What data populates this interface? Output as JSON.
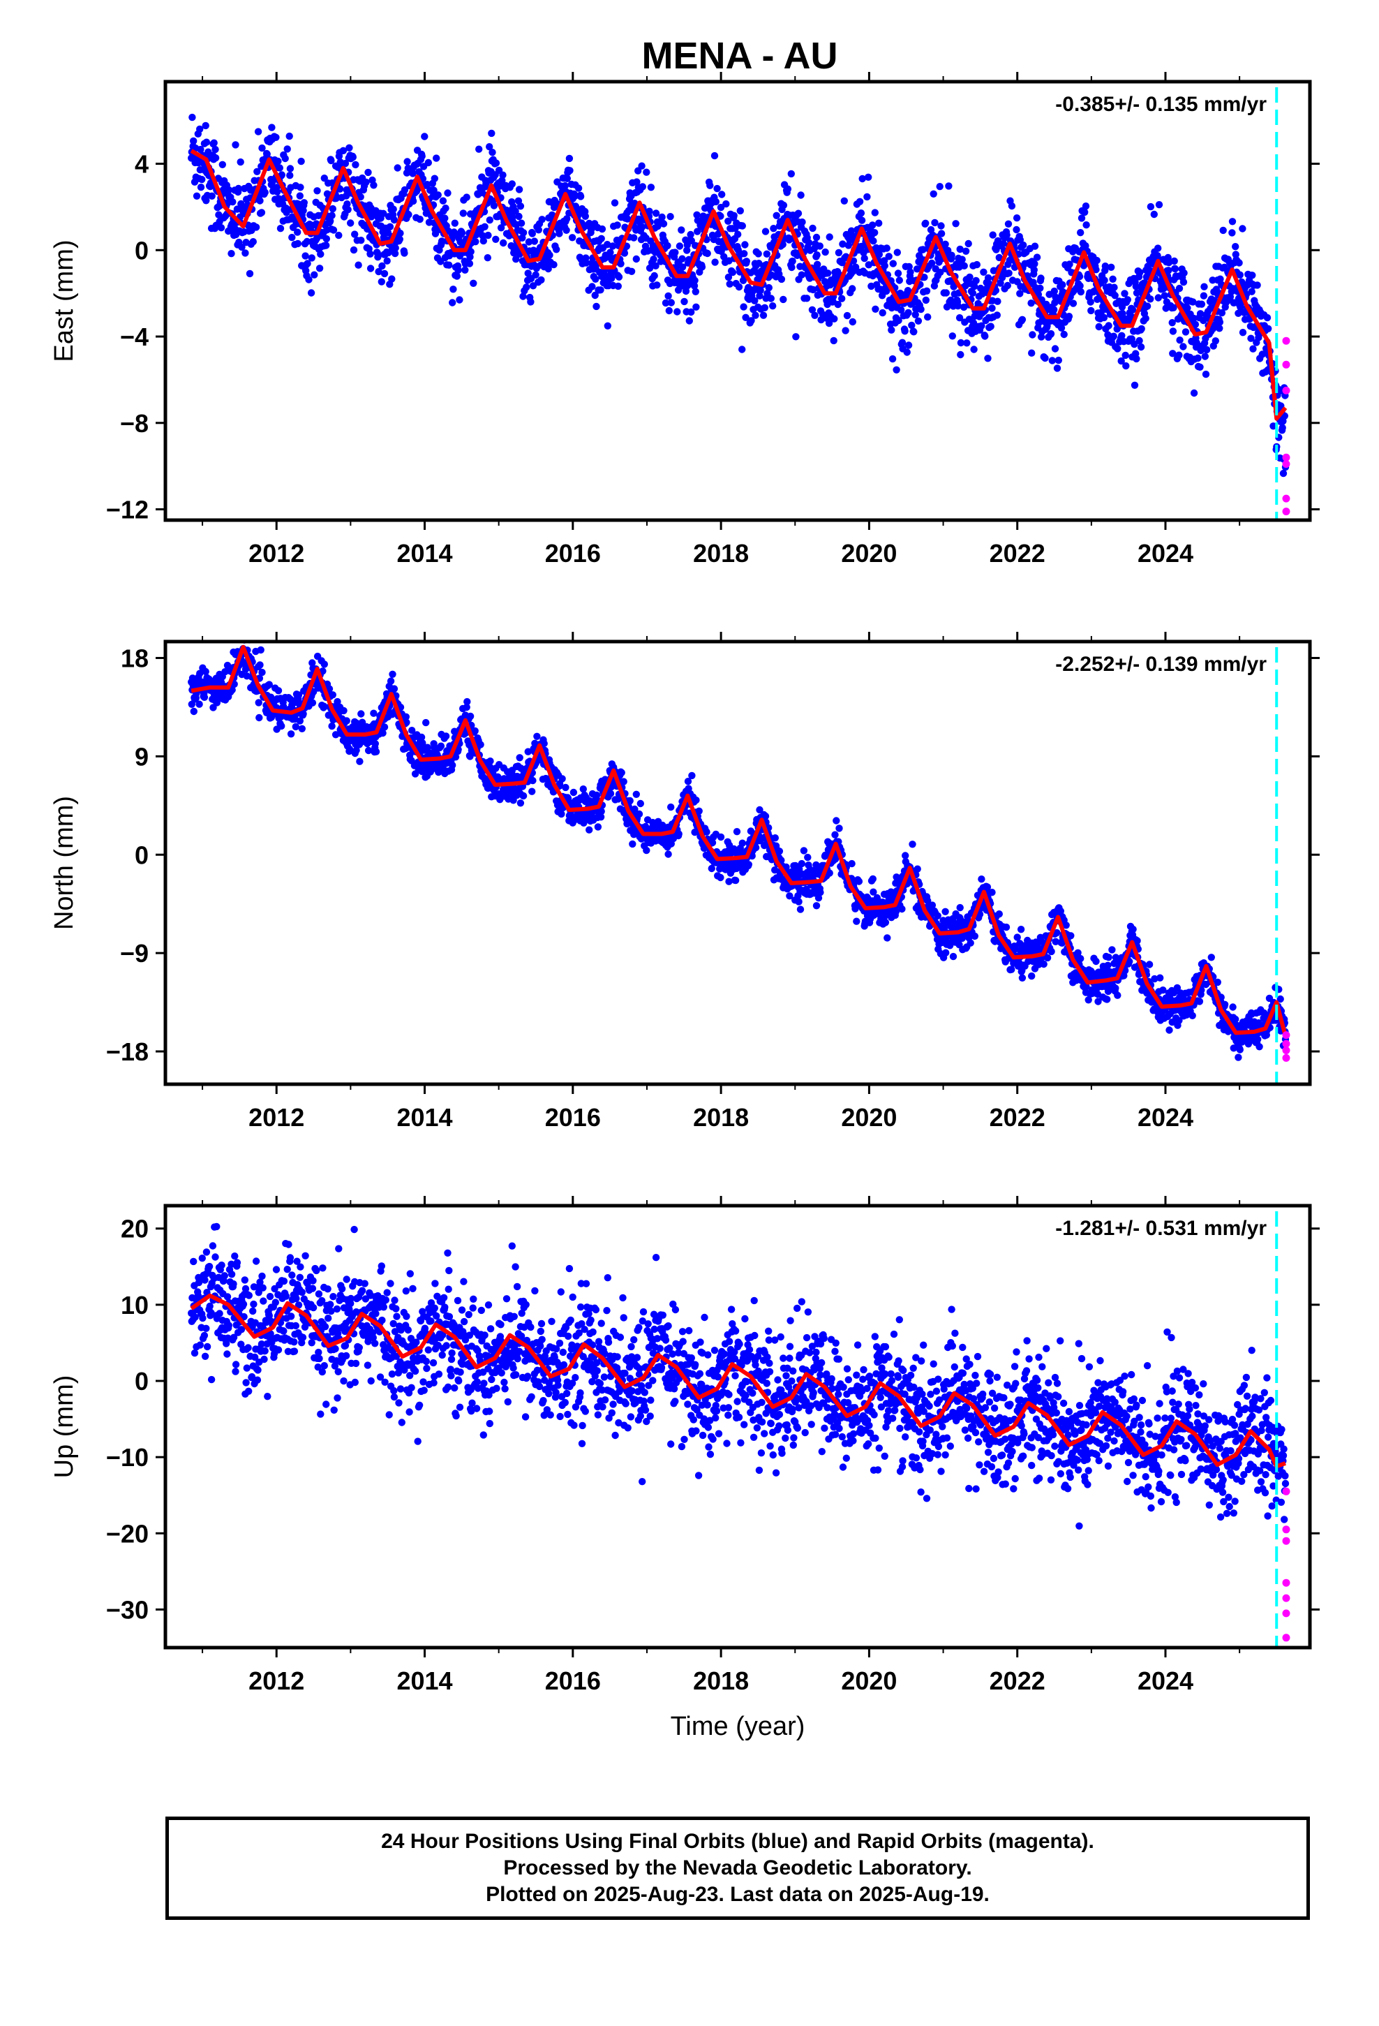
{
  "title": "MENA - AU",
  "colors": {
    "final_orbits": "#0000ff",
    "rapid_orbits": "#ff00ff",
    "model": "#ff0000",
    "last_data_line": "#00ffff"
  },
  "chart_data": [
    {
      "type": "scatter",
      "component": "East",
      "ylabel": "East (mm)",
      "xlabel": "",
      "rate_label": "-0.385+/- 0.135 mm/yr",
      "xlim": [
        2010.5,
        2025.95
      ],
      "ylim": [
        -12.5,
        7.8
      ],
      "xticks": [
        2012,
        2014,
        2016,
        2018,
        2020,
        2022,
        2024
      ],
      "yticks": [
        4,
        0,
        -4,
        -8,
        -12
      ],
      "ytick_labels": [
        "4",
        "0",
        "−4",
        "−8",
        "−12"
      ],
      "vline_x": 2025.5,
      "series": [
        {
          "type": "scatter",
          "color": "#0000ff",
          "x_range": [
            2010.85,
            2025.62
          ],
          "trend": {
            "t0": 2010.85,
            "y0": 4.5,
            "rate": -0.385
          },
          "scatter_sd": 1.3
        },
        {
          "type": "scatter",
          "color": "#ff00ff",
          "x_range": [
            2025.62,
            2025.63
          ],
          "points": [
            [
              2025.63,
              -4.2
            ],
            [
              2025.63,
              -5.3
            ],
            [
              2025.63,
              -6.5
            ],
            [
              2025.63,
              -9.6
            ],
            [
              2025.63,
              -9.9
            ],
            [
              2025.63,
              -11.5
            ],
            [
              2025.63,
              -12.1
            ]
          ]
        },
        {
          "type": "line",
          "color": "#ff0000",
          "curve": [
            [
              2010.85,
              4.6
            ],
            [
              2011.05,
              4.2
            ],
            [
              2011.3,
              2.0
            ],
            [
              2011.55,
              1.1
            ],
            [
              2011.9,
              4.2
            ],
            [
              2012.1,
              2.8
            ],
            [
              2012.4,
              0.8
            ],
            [
              2012.55,
              0.8
            ],
            [
              2012.9,
              3.8
            ],
            [
              2013.1,
              2.2
            ],
            [
              2013.4,
              0.3
            ],
            [
              2013.55,
              0.4
            ],
            [
              2013.9,
              3.4
            ],
            [
              2014.1,
              1.8
            ],
            [
              2014.4,
              0.0
            ],
            [
              2014.55,
              0.0
            ],
            [
              2014.9,
              3.0
            ],
            [
              2015.1,
              1.4
            ],
            [
              2015.4,
              -0.5
            ],
            [
              2015.55,
              -0.4
            ],
            [
              2015.9,
              2.6
            ],
            [
              2016.1,
              1.0
            ],
            [
              2016.4,
              -0.8
            ],
            [
              2016.55,
              -0.8
            ],
            [
              2016.9,
              2.2
            ],
            [
              2017.1,
              0.6
            ],
            [
              2017.4,
              -1.2
            ],
            [
              2017.55,
              -1.2
            ],
            [
              2017.9,
              1.8
            ],
            [
              2018.1,
              0.2
            ],
            [
              2018.4,
              -1.5
            ],
            [
              2018.55,
              -1.6
            ],
            [
              2018.9,
              1.4
            ],
            [
              2019.1,
              -0.2
            ],
            [
              2019.4,
              -2.0
            ],
            [
              2019.55,
              -2.0
            ],
            [
              2019.9,
              1.0
            ],
            [
              2020.1,
              -0.6
            ],
            [
              2020.4,
              -2.4
            ],
            [
              2020.55,
              -2.3
            ],
            [
              2020.9,
              0.6
            ],
            [
              2021.1,
              -1.0
            ],
            [
              2021.4,
              -2.7
            ],
            [
              2021.55,
              -2.7
            ],
            [
              2021.9,
              0.3
            ],
            [
              2022.1,
              -1.4
            ],
            [
              2022.4,
              -3.1
            ],
            [
              2022.55,
              -3.1
            ],
            [
              2022.9,
              -0.1
            ],
            [
              2023.1,
              -1.8
            ],
            [
              2023.4,
              -3.5
            ],
            [
              2023.55,
              -3.5
            ],
            [
              2023.9,
              -0.5
            ],
            [
              2024.1,
              -2.1
            ],
            [
              2024.4,
              -3.9
            ],
            [
              2024.55,
              -3.8
            ],
            [
              2024.9,
              -0.9
            ],
            [
              2025.1,
              -2.6
            ],
            [
              2025.4,
              -4.3
            ],
            [
              2025.5,
              -7.8
            ],
            [
              2025.62,
              -7.3
            ]
          ]
        }
      ]
    },
    {
      "type": "scatter",
      "component": "North",
      "ylabel": "North (mm)",
      "xlabel": "",
      "rate_label": "-2.252+/- 0.139 mm/yr",
      "xlim": [
        2010.5,
        2025.95
      ],
      "ylim": [
        -21,
        19.5
      ],
      "xticks": [
        2012,
        2014,
        2016,
        2018,
        2020,
        2022,
        2024
      ],
      "yticks": [
        18,
        9,
        0,
        -9,
        -18
      ],
      "ytick_labels": [
        "18",
        "9",
        "0",
        "−9",
        "−18"
      ],
      "vline_x": 2025.5,
      "series": [
        {
          "type": "scatter",
          "color": "#0000ff",
          "x_range": [
            2010.85,
            2025.62
          ],
          "trend": {
            "t0": 2010.85,
            "y0": 15.0,
            "rate": -2.252
          },
          "scatter_sd": 1.1
        },
        {
          "type": "scatter",
          "color": "#ff00ff",
          "x_range": [
            2025.62,
            2025.63
          ],
          "points": [
            [
              2025.63,
              -16.5
            ],
            [
              2025.63,
              -17.3
            ],
            [
              2025.63,
              -17.9
            ],
            [
              2025.63,
              -18.6
            ]
          ]
        },
        {
          "type": "line",
          "color": "#ff0000",
          "curve": [
            [
              2010.85,
              15.0
            ],
            [
              2011.1,
              15.3
            ],
            [
              2011.35,
              15.3
            ],
            [
              2011.55,
              19.0
            ],
            [
              2011.75,
              15.5
            ],
            [
              2011.95,
              13.2
            ],
            [
              2012.2,
              13.0
            ],
            [
              2012.35,
              13.4
            ],
            [
              2012.55,
              17.0
            ],
            [
              2012.75,
              13.3
            ],
            [
              2012.95,
              11.0
            ],
            [
              2013.2,
              11.0
            ],
            [
              2013.35,
              11.2
            ],
            [
              2013.55,
              14.7
            ],
            [
              2013.75,
              11.0
            ],
            [
              2013.95,
              8.7
            ],
            [
              2014.2,
              8.8
            ],
            [
              2014.35,
              9.0
            ],
            [
              2014.55,
              12.3
            ],
            [
              2014.75,
              8.6
            ],
            [
              2014.95,
              6.4
            ],
            [
              2015.2,
              6.5
            ],
            [
              2015.35,
              6.6
            ],
            [
              2015.55,
              10.0
            ],
            [
              2015.75,
              6.4
            ],
            [
              2015.95,
              4.1
            ],
            [
              2016.2,
              4.2
            ],
            [
              2016.35,
              4.4
            ],
            [
              2016.55,
              7.7
            ],
            [
              2016.75,
              4.0
            ],
            [
              2016.95,
              1.9
            ],
            [
              2017.2,
              1.9
            ],
            [
              2017.35,
              2.1
            ],
            [
              2017.55,
              5.4
            ],
            [
              2017.75,
              1.7
            ],
            [
              2017.95,
              -0.4
            ],
            [
              2018.2,
              -0.3
            ],
            [
              2018.35,
              -0.2
            ],
            [
              2018.55,
              3.2
            ],
            [
              2018.75,
              -0.6
            ],
            [
              2018.95,
              -2.6
            ],
            [
              2019.2,
              -2.5
            ],
            [
              2019.35,
              -2.4
            ],
            [
              2019.55,
              1.0
            ],
            [
              2019.75,
              -2.9
            ],
            [
              2019.95,
              -4.9
            ],
            [
              2020.2,
              -4.8
            ],
            [
              2020.35,
              -4.6
            ],
            [
              2020.55,
              -1.2
            ],
            [
              2020.75,
              -5.1
            ],
            [
              2020.95,
              -7.2
            ],
            [
              2021.2,
              -7.1
            ],
            [
              2021.35,
              -6.8
            ],
            [
              2021.55,
              -3.4
            ],
            [
              2021.75,
              -7.4
            ],
            [
              2021.95,
              -9.4
            ],
            [
              2022.2,
              -9.3
            ],
            [
              2022.35,
              -9.1
            ],
            [
              2022.55,
              -5.7
            ],
            [
              2022.75,
              -9.6
            ],
            [
              2022.95,
              -11.7
            ],
            [
              2023.2,
              -11.5
            ],
            [
              2023.35,
              -11.3
            ],
            [
              2023.55,
              -8.0
            ],
            [
              2023.75,
              -11.8
            ],
            [
              2023.95,
              -13.9
            ],
            [
              2024.2,
              -13.8
            ],
            [
              2024.35,
              -13.6
            ],
            [
              2024.55,
              -10.2
            ],
            [
              2024.75,
              -14.2
            ],
            [
              2024.95,
              -16.3
            ],
            [
              2025.2,
              -16.2
            ],
            [
              2025.35,
              -15.9
            ],
            [
              2025.5,
              -13.5
            ],
            [
              2025.62,
              -16.6
            ]
          ]
        }
      ]
    },
    {
      "type": "scatter",
      "component": "Up",
      "ylabel": "Up (mm)",
      "xlabel": "Time (year)",
      "rate_label": "-1.281+/- 0.531 mm/yr",
      "xlim": [
        2010.5,
        2025.95
      ],
      "ylim": [
        -35,
        23
      ],
      "xticks": [
        2012,
        2014,
        2016,
        2018,
        2020,
        2022,
        2024
      ],
      "yticks": [
        20,
        10,
        0,
        -10,
        -20,
        -30
      ],
      "ytick_labels": [
        "20",
        "10",
        "0",
        "−10",
        "−20",
        "−30"
      ],
      "vline_x": 2025.5,
      "series": [
        {
          "type": "scatter",
          "color": "#0000ff",
          "x_range": [
            2010.85,
            2025.62
          ],
          "trend": {
            "t0": 2010.85,
            "y0": 9.5,
            "rate": -1.281
          },
          "scatter_sd": 5.0
        },
        {
          "type": "scatter",
          "color": "#ff00ff",
          "x_range": [
            2025.62,
            2025.63
          ],
          "points": [
            [
              2025.63,
              -14.5
            ],
            [
              2025.63,
              -19.5
            ],
            [
              2025.63,
              -21.0
            ],
            [
              2025.63,
              -26.5
            ],
            [
              2025.63,
              -28.5
            ],
            [
              2025.63,
              -30.5
            ],
            [
              2025.63,
              -33.7
            ]
          ]
        },
        {
          "type": "line",
          "color": "#ff0000",
          "curve": [
            [
              2010.85,
              9.5
            ],
            [
              2011.1,
              11.2
            ],
            [
              2011.35,
              10.0
            ],
            [
              2011.7,
              5.8
            ],
            [
              2011.95,
              7.0
            ],
            [
              2012.15,
              10.2
            ],
            [
              2012.4,
              8.6
            ],
            [
              2012.7,
              4.6
            ],
            [
              2012.95,
              5.6
            ],
            [
              2013.15,
              8.8
            ],
            [
              2013.4,
              7.2
            ],
            [
              2013.7,
              3.2
            ],
            [
              2013.95,
              4.4
            ],
            [
              2014.15,
              7.4
            ],
            [
              2014.4,
              5.8
            ],
            [
              2014.7,
              1.8
            ],
            [
              2014.95,
              3.0
            ],
            [
              2015.15,
              6.0
            ],
            [
              2015.4,
              4.4
            ],
            [
              2015.7,
              0.6
            ],
            [
              2015.95,
              1.6
            ],
            [
              2016.15,
              4.8
            ],
            [
              2016.4,
              3.0
            ],
            [
              2016.7,
              -0.8
            ],
            [
              2016.95,
              0.4
            ],
            [
              2017.15,
              3.4
            ],
            [
              2017.4,
              1.8
            ],
            [
              2017.7,
              -2.2
            ],
            [
              2017.95,
              -1.0
            ],
            [
              2018.15,
              2.2
            ],
            [
              2018.4,
              0.6
            ],
            [
              2018.7,
              -3.4
            ],
            [
              2018.95,
              -2.2
            ],
            [
              2019.15,
              0.9
            ],
            [
              2019.4,
              -0.8
            ],
            [
              2019.7,
              -4.6
            ],
            [
              2019.95,
              -3.4
            ],
            [
              2020.15,
              -0.3
            ],
            [
              2020.4,
              -2.0
            ],
            [
              2020.7,
              -5.9
            ],
            [
              2020.95,
              -4.7
            ],
            [
              2021.15,
              -1.6
            ],
            [
              2021.4,
              -3.2
            ],
            [
              2021.7,
              -7.2
            ],
            [
              2021.95,
              -6.0
            ],
            [
              2022.15,
              -2.9
            ],
            [
              2022.4,
              -4.5
            ],
            [
              2022.7,
              -8.4
            ],
            [
              2022.95,
              -7.2
            ],
            [
              2023.15,
              -4.1
            ],
            [
              2023.4,
              -5.8
            ],
            [
              2023.7,
              -9.7
            ],
            [
              2023.95,
              -8.5
            ],
            [
              2024.15,
              -5.3
            ],
            [
              2024.4,
              -7.0
            ],
            [
              2024.7,
              -11.0
            ],
            [
              2024.95,
              -9.7
            ],
            [
              2025.15,
              -6.6
            ],
            [
              2025.4,
              -9.0
            ],
            [
              2025.5,
              -11.2
            ],
            [
              2025.62,
              -10.8
            ]
          ]
        }
      ]
    }
  ],
  "footer": {
    "line1": "24 Hour Positions Using Final Orbits (blue) and Rapid Orbits (magenta).",
    "line2": "Processed by the Nevada Geodetic Laboratory.",
    "line3": "Plotted on 2025-Aug-23. Last data on 2025-Aug-19."
  }
}
